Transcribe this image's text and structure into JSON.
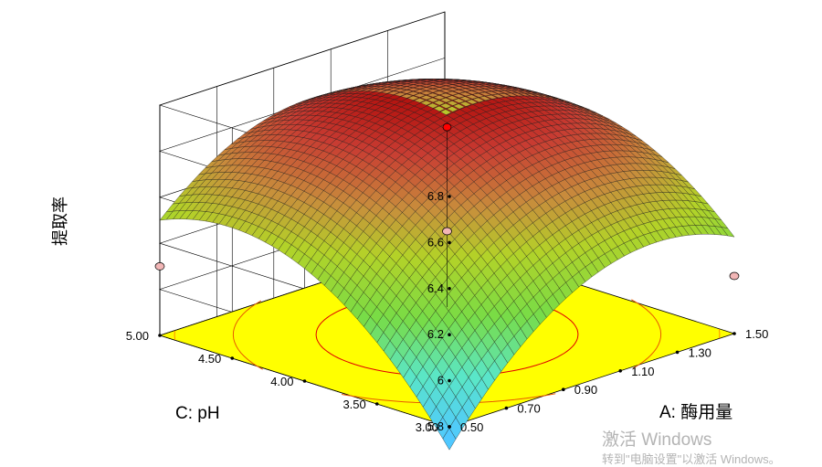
{
  "chart_data": {
    "type": "surface",
    "zlabel": "提取率",
    "xlabel": "A: 酶用量",
    "ylabel": "C: pH",
    "x_ticks": [
      "0.50",
      "0.70",
      "0.90",
      "1.10",
      "1.30",
      "1.50"
    ],
    "y_ticks": [
      "3.00",
      "3.50",
      "4.00",
      "4.50",
      "5.00"
    ],
    "z_ticks": [
      "5.8",
      "6",
      "6.2",
      "6.4",
      "6.6",
      "6.8"
    ],
    "xlim": [
      0.5,
      1.5
    ],
    "ylim": [
      3.0,
      5.0
    ],
    "zlim": [
      5.8,
      6.8
    ],
    "surface_peak": {
      "x": 1.0,
      "y": 4.0,
      "z": 6.72
    },
    "corner_values": [
      {
        "x": 0.5,
        "y": 3.0,
        "z": 5.7
      },
      {
        "x": 1.5,
        "y": 3.0,
        "z": 6.22
      },
      {
        "x": 0.5,
        "y": 5.0,
        "z": 6.3
      },
      {
        "x": 1.5,
        "y": 5.0,
        "z": 6.35
      }
    ],
    "design_points": [
      {
        "x": 1.0,
        "y": 4.0,
        "z": 6.72
      },
      {
        "x": 0.5,
        "y": 5.0,
        "z": 6.1
      },
      {
        "x": 1.5,
        "y": 3.0,
        "z": 6.05
      }
    ],
    "floor_color": "#ffff00",
    "grid": true
  },
  "watermark": {
    "line1": "激活 Windows",
    "line2": "转到\"电脑设置\"以激活 Windows。"
  }
}
